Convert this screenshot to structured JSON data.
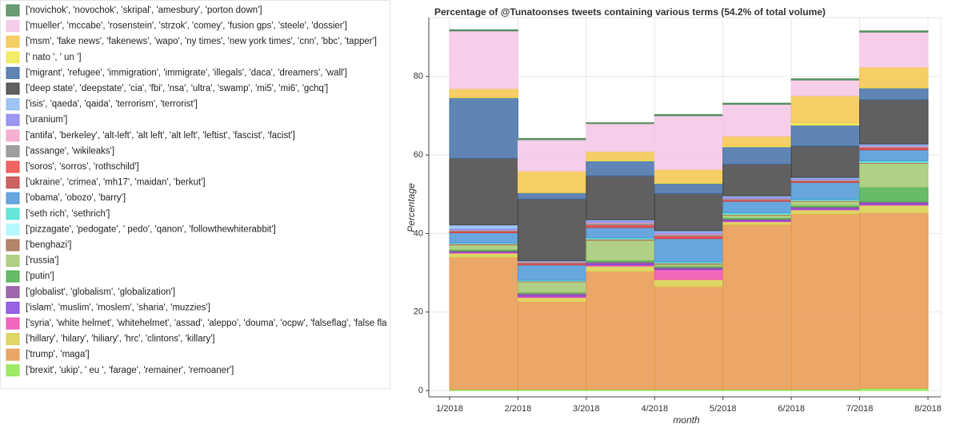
{
  "chart_data": {
    "type": "bar",
    "stacked": true,
    "title": "Percentage of @Tunatoonses tweets containing various terms (54.2% of total volume)",
    "xlabel": "month",
    "ylabel": "Percentage",
    "xticks": [
      "1/2018",
      "2/2018",
      "3/2018",
      "4/2018",
      "5/2018",
      "6/2018",
      "7/2018",
      "8/2018"
    ],
    "ylim": [
      -1.6,
      95
    ],
    "yticks": [
      0,
      20,
      40,
      60,
      80
    ],
    "grid": true,
    "legend": "left",
    "series": [
      {
        "name": "['novichok', 'novochok', 'skripal', 'amesbury', 'porton down']",
        "color": "#4f8a5c",
        "values": [
          0.3,
          0.3,
          0.2,
          0.3,
          0.3,
          0.3,
          0.3
        ]
      },
      {
        "name": "['mueller', 'mccabe', 'rosenstein', 'strzok', 'comey', 'fusion gps', 'steele', 'dossier']",
        "color": "#f5c6e6",
        "values": [
          14.7,
          8,
          7.1,
          13.7,
          8.1,
          4,
          8.9
        ]
      },
      {
        "name": "['msm', 'fake news', 'fakenews', 'wapo', 'ny times', 'new york times', 'cnn', 'bbc', 'tapper']",
        "color": "#f5c54b",
        "values": [
          2.2,
          5.4,
          2.2,
          3.3,
          2.4,
          6.9,
          5.1
        ]
      },
      {
        "name": "[' nato ', ' un ']",
        "color": "#f0ea4e",
        "values": [
          0.1,
          0.1,
          0.2,
          0.2,
          0.3,
          0.6,
          0.2
        ]
      },
      {
        "name": "['migrant', 'refugee', 'immigration', 'immigrate', 'illegals', 'daca', 'dreamers', 'wall']",
        "color": "#4470a8",
        "values": [
          15.4,
          1.6,
          3.8,
          2.6,
          4.4,
          5.3,
          3
        ]
      },
      {
        "name": "['deep state', 'deepstate', 'cia', 'fbi', 'nsa', 'ultra', 'swamp', 'mi5', 'mi6', 'gchq']",
        "color": "#444444",
        "values": [
          17,
          15.7,
          11.2,
          9.5,
          8.1,
          8,
          11.3
        ]
      },
      {
        "name": "['isis', 'qaeda', 'qaida', 'terrorism', 'terrorist']",
        "color": "#8fb8f2",
        "values": [
          1,
          0.1,
          0.3,
          0.4,
          0.3,
          0.3,
          0.3
        ]
      },
      {
        "name": "['uranium']",
        "color": "#8a86f0",
        "values": [
          0.2,
          0.1,
          0.3,
          0.3,
          0.3,
          0.2,
          0.2
        ]
      },
      {
        "name": "['antifa', 'berkeley', 'alt-left', 'alt left', 'alt left', 'leftist', 'fascist', 'facist']",
        "color": "#f5a2c8",
        "values": [
          0.1,
          0.1,
          0.2,
          0.2,
          0.1,
          0.1,
          0.2
        ]
      },
      {
        "name": "['assange', 'wikileaks']",
        "color": "#8e8e8e",
        "values": [
          0.3,
          0.3,
          0.5,
          0.4,
          0.3,
          0.3,
          0.2
        ]
      },
      {
        "name": "['soros', 'sorros', 'rothschild']",
        "color": "#f04848",
        "values": [
          0.2,
          0.2,
          0.3,
          0.4,
          0.2,
          0.2,
          0.3
        ]
      },
      {
        "name": "['ukraine', 'crimea', 'mh17', 'maidan', 'berkut']",
        "color": "#c44848",
        "values": [
          0.2,
          0.3,
          0.4,
          0.3,
          0.2,
          0.2,
          0.3
        ]
      },
      {
        "name": "['obama', 'obozo', 'barry']",
        "color": "#4c98d8",
        "values": [
          2.6,
          3.9,
          2.6,
          5.9,
          2.9,
          4.3,
          2.8
        ]
      },
      {
        "name": "['seth rich', 'sethrich']",
        "color": "#4ee2d4",
        "values": [
          0.1,
          0.1,
          0.2,
          0.2,
          0.3,
          0.2,
          0.3
        ]
      },
      {
        "name": "['pizzagate', 'pedogate', ' pedo', 'qanon', 'followthewhiterabbit']",
        "color": "#a8f8ff",
        "values": [
          0.1,
          0.1,
          0.1,
          0.1,
          0.1,
          0.1,
          0.1
        ]
      },
      {
        "name": "['benghazi']",
        "color": "#a87050",
        "values": [
          0.3,
          0.2,
          0.3,
          0.3,
          0.2,
          0.2,
          0.2
        ]
      },
      {
        "name": "['russia']",
        "color": "#a2c870",
        "values": [
          1.2,
          2.7,
          5.1,
          0.5,
          0.7,
          1,
          6.1
        ]
      },
      {
        "name": "['putin']",
        "color": "#4cb04c",
        "values": [
          0.3,
          0.2,
          0.4,
          0.3,
          0.3,
          0.4,
          3.7
        ]
      },
      {
        "name": "['globalist', 'globalism', 'globalization']",
        "color": "#8e4e9e",
        "values": [
          0.2,
          0.5,
          0.5,
          0.4,
          0.3,
          0.3,
          0.4
        ]
      },
      {
        "name": "['islam', 'muslim', 'moslem', 'sharia', 'muzzies']",
        "color": "#8448e0",
        "values": [
          0.2,
          0.3,
          0.3,
          0.2,
          0.2,
          0.3,
          0.3
        ]
      },
      {
        "name": "['syria', 'white helmet', 'whitehelmet', 'assad', 'aleppo', 'douma', 'ocpw', 'falseflag', 'false fla",
        "color": "#f04eb0",
        "values": [
          0.2,
          0.3,
          0.3,
          2.5,
          0.2,
          0.2,
          0.2
        ]
      },
      {
        "name": "['hillary', 'hilary', 'hiliary', 'hrc', 'clintons', 'killary']",
        "color": "#d8d04e",
        "values": [
          1,
          1,
          1.3,
          1.8,
          0.7,
          1,
          1.9
        ]
      },
      {
        "name": "['trump', 'maga']",
        "color": "#e8984e",
        "values": [
          33.7,
          22.4,
          30.1,
          26.2,
          42,
          44.7,
          44.7
        ]
      },
      {
        "name": "['brexit', 'ukip', ' eu ', 'farage', 'remainer', 'remoaner']",
        "color": "#8ee84e",
        "values": [
          0.3,
          0.3,
          0.3,
          0.3,
          0.3,
          0.3,
          0.6
        ]
      }
    ]
  }
}
